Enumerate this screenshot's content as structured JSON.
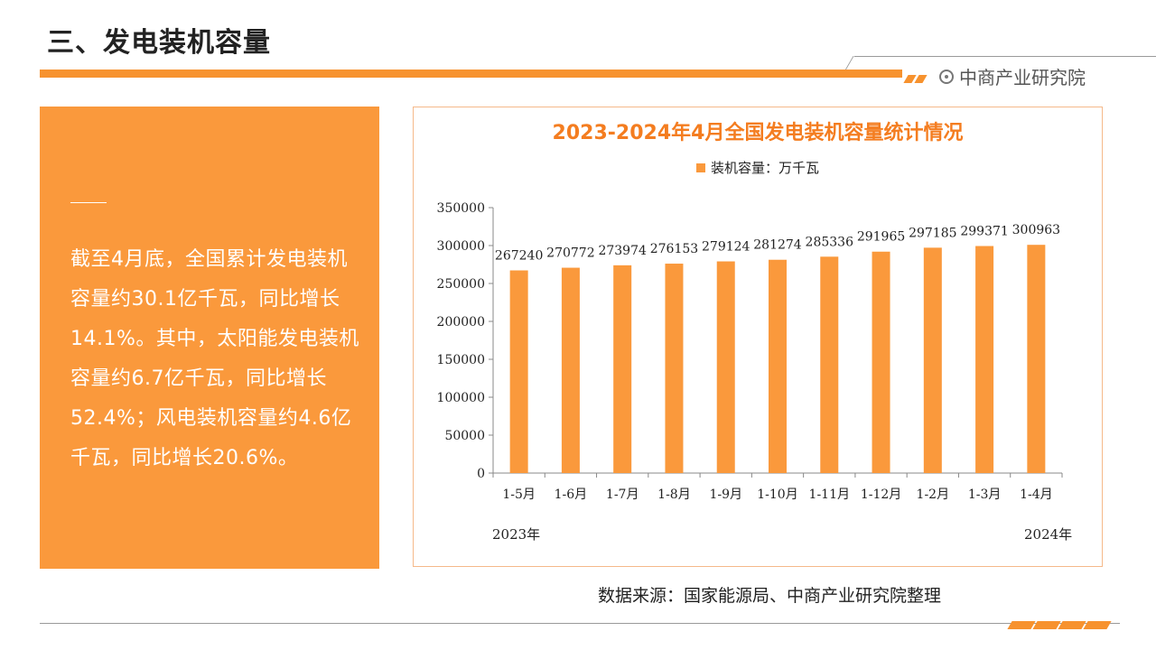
{
  "header": {
    "title": "三、发电装机容量",
    "brand": "中商产业研究院"
  },
  "summary": {
    "text": "截至4月底，全国累计发电装机容量约30.1亿千瓦，同比增长14.1%。其中，太阳能发电装机容量约6.7亿千瓦，同比增长52.4%；风电装机容量约4.6亿千瓦，同比增长20.6%。"
  },
  "chart_data": {
    "type": "bar",
    "title": "2023-2024年4月全国发电装机容量统计情况",
    "categories": [
      "1-5月",
      "1-6月",
      "1-7月",
      "1-8月",
      "1-9月",
      "1-10月",
      "1-11月",
      "1-12月",
      "1-2月",
      "1-3月",
      "1-4月"
    ],
    "series": [
      {
        "name": "装机容量：万千瓦",
        "values": [
          267240,
          270772,
          273974,
          276153,
          279124,
          281274,
          285336,
          291965,
          297185,
          299371,
          300963
        ]
      }
    ],
    "ylim": [
      0,
      350000
    ],
    "yticks": [
      0,
      50000,
      100000,
      150000,
      200000,
      250000,
      300000,
      350000
    ],
    "xlabel": "",
    "ylabel": "",
    "grid": false,
    "legend": "top-center",
    "year_labels": {
      "start": "2023年",
      "end": "2024年"
    },
    "bar_color": "#fa993c"
  },
  "footer": {
    "source": "数据来源：国家能源局、中商产业研究院整理"
  },
  "colors": {
    "accent": "#f7922e",
    "panel": "#fa993c",
    "chart_title": "#f47d20"
  }
}
